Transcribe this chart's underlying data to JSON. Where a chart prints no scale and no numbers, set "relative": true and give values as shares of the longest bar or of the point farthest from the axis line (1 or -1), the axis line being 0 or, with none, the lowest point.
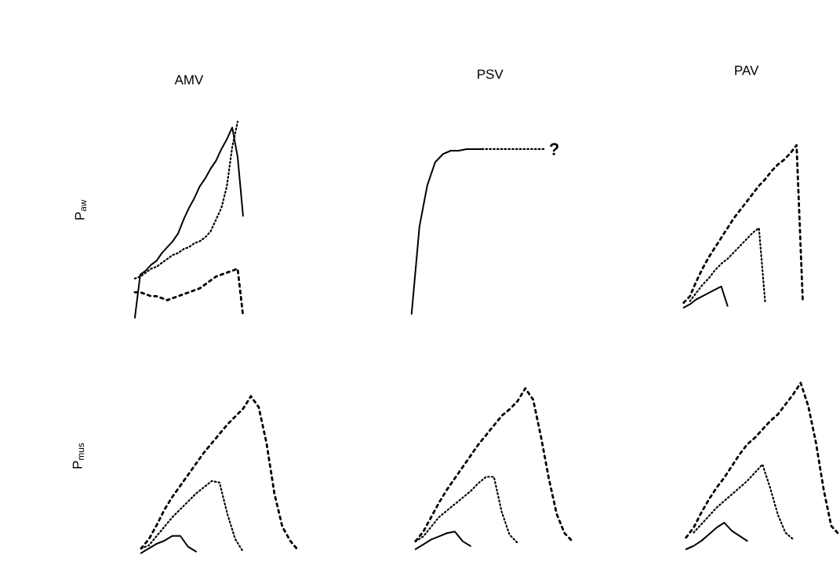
{
  "chart_data": [
    {
      "type": "line",
      "relative": true,
      "title": "AMV",
      "ylabel": "P$_{aw}$",
      "categories": [
        null,
        null,
        null,
        null,
        null,
        null,
        null,
        null,
        null,
        null,
        null,
        null,
        null,
        null,
        null,
        null,
        null,
        null,
        null,
        null,
        null
      ],
      "series": [
        {
          "color": "#000000",
          "line_style": "solid",
          "values": [
            0,
            0.22,
            0.24,
            0.27,
            0.29,
            0.33,
            0.36,
            0.39,
            0.43,
            0.5,
            0.56,
            0.61,
            0.67,
            0.71,
            0.76,
            0.8,
            0.86,
            0.91,
            0.97,
            0.82,
            0.52
          ]
        },
        {
          "color": "#000000",
          "line_style": "dotted",
          "values": [
            0.2,
            0.21,
            0.23,
            0.25,
            0.26,
            0.28,
            0.3,
            0.32,
            0.33,
            0.35,
            0.36,
            0.38,
            0.39,
            0.41,
            0.44,
            0.5,
            0.56,
            0.67,
            0.87,
            1.0,
            null
          ]
        },
        {
          "color": "#000000",
          "line_style": "dashed",
          "values": [
            0.13,
            0.13,
            0.12,
            0.11,
            0.11,
            0.1,
            0.09,
            0.1,
            0.11,
            0.12,
            0.13,
            0.14,
            0.15,
            0.17,
            0.19,
            0.21,
            0.22,
            0.23,
            0.24,
            0.25,
            0.01
          ]
        }
      ]
    },
    {
      "type": "line",
      "relative": true,
      "title": "PSV",
      "annotations": [
        "?"
      ],
      "categories": [
        null,
        null,
        null,
        null,
        null,
        null,
        null,
        null,
        null,
        null,
        null,
        null,
        null,
        null,
        null,
        null,
        null,
        null,
        null,
        null,
        null
      ],
      "series": [
        {
          "color": "#000000",
          "line_style": "solid",
          "values": [
            0,
            0.53,
            0.78,
            0.92,
            0.97,
            0.99,
            0.99,
            1.0,
            1.0,
            1.0,
            null,
            null,
            null,
            null,
            null,
            null,
            null,
            null,
            null,
            null,
            null
          ]
        },
        {
          "color": "#000000",
          "line_style": "dotted",
          "values": [
            null,
            null,
            null,
            null,
            null,
            null,
            null,
            null,
            null,
            1.0,
            1.0,
            1.0,
            1.0,
            1.0,
            1.0,
            1.0,
            1.0,
            1.0,
            null,
            null,
            null
          ]
        }
      ]
    },
    {
      "type": "line",
      "relative": true,
      "title": "PAV",
      "categories": [
        null,
        null,
        null,
        null,
        null,
        null,
        null,
        null,
        null,
        null,
        null,
        null,
        null,
        null,
        null,
        null,
        null,
        null,
        null,
        null,
        null
      ],
      "series": [
        {
          "color": "#000000",
          "line_style": "dashed",
          "values": [
            0.03,
            0.07,
            0.16,
            0.24,
            0.31,
            0.37,
            0.43,
            0.49,
            0.55,
            0.6,
            0.65,
            0.7,
            0.75,
            0.79,
            0.84,
            0.88,
            0.91,
            0.95,
            1.0,
            0.03,
            null
          ]
        },
        {
          "color": "#000000",
          "line_style": "dotted",
          "values": [
            null,
            0.04,
            0.09,
            0.14,
            0.18,
            0.23,
            0.27,
            0.3,
            0.34,
            0.38,
            0.42,
            0.46,
            0.49,
            0.03,
            null,
            null,
            null,
            null,
            null,
            null,
            null
          ]
        },
        {
          "color": "#000000",
          "line_style": "solid",
          "values": [
            0,
            0.02,
            0.05,
            0.07,
            0.09,
            0.11,
            0.13,
            0.01,
            null,
            null,
            null,
            null,
            null,
            null,
            null,
            null,
            null,
            null,
            null,
            null,
            null
          ]
        }
      ]
    },
    {
      "type": "line",
      "relative": true,
      "ylabel": "P$_{mus}$",
      "categories": [
        null,
        null,
        null,
        null,
        null,
        null,
        null,
        null,
        null,
        null,
        null,
        null,
        null,
        null,
        null,
        null,
        null,
        null,
        null,
        null,
        null
      ],
      "series": [
        {
          "color": "#000000",
          "line_style": "dashed",
          "values": [
            0.03,
            0.09,
            0.18,
            0.28,
            0.36,
            0.43,
            0.5,
            0.57,
            0.64,
            0.7,
            0.76,
            0.82,
            0.87,
            0.92,
            1.0,
            0.93,
            0.7,
            0.38,
            0.17,
            0.08,
            0.02
          ]
        },
        {
          "color": "#000000",
          "line_style": "dotted",
          "values": [
            0.03,
            0.05,
            0.11,
            0.17,
            0.23,
            0.28,
            0.33,
            0.38,
            0.42,
            0.46,
            0.45,
            0.25,
            0.09,
            0.01,
            null,
            null,
            null,
            null,
            null,
            null,
            null
          ]
        },
        {
          "color": "#000000",
          "line_style": "solid",
          "values": [
            0,
            0.03,
            0.06,
            0.08,
            0.11,
            0.11,
            0.04,
            0.01,
            null,
            null,
            null,
            null,
            null,
            null,
            null,
            null,
            null,
            null,
            null,
            null,
            null
          ]
        }
      ]
    },
    {
      "type": "line",
      "relative": true,
      "categories": [
        null,
        null,
        null,
        null,
        null,
        null,
        null,
        null,
        null,
        null,
        null,
        null,
        null,
        null,
        null,
        null,
        null,
        null,
        null,
        null,
        null
      ],
      "series": [
        {
          "color": "#000000",
          "line_style": "dashed",
          "values": [
            0.05,
            0.11,
            0.2,
            0.29,
            0.37,
            0.44,
            0.51,
            0.58,
            0.65,
            0.71,
            0.77,
            0.83,
            0.87,
            0.92,
            1.0,
            0.93,
            0.7,
            0.44,
            0.22,
            0.1,
            0.05
          ]
        },
        {
          "color": "#000000",
          "line_style": "dotted",
          "values": [
            0.05,
            0.08,
            0.14,
            0.2,
            0.24,
            0.28,
            0.32,
            0.36,
            0.41,
            0.45,
            0.45,
            0.23,
            0.09,
            0.04,
            null,
            null,
            null,
            null,
            null,
            null,
            null
          ]
        },
        {
          "color": "#000000",
          "line_style": "solid",
          "values": [
            0,
            0.03,
            0.06,
            0.08,
            0.1,
            0.11,
            0.05,
            0.02,
            null,
            null,
            null,
            null,
            null,
            null,
            null,
            null,
            null,
            null,
            null,
            null,
            null
          ]
        }
      ]
    },
    {
      "type": "line",
      "relative": true,
      "categories": [
        null,
        null,
        null,
        null,
        null,
        null,
        null,
        null,
        null,
        null,
        null,
        null,
        null,
        null,
        null,
        null,
        null,
        null,
        null,
        null,
        null
      ],
      "series": [
        {
          "color": "#000000",
          "line_style": "dashed",
          "values": [
            0.07,
            0.13,
            0.22,
            0.3,
            0.37,
            0.43,
            0.5,
            0.57,
            0.63,
            0.67,
            0.72,
            0.77,
            0.81,
            0.87,
            0.93,
            1.0,
            0.86,
            0.64,
            0.36,
            0.14,
            0.09
          ]
        },
        {
          "color": "#000000",
          "line_style": "dotted",
          "values": [
            null,
            0.1,
            0.15,
            0.2,
            0.25,
            0.29,
            0.33,
            0.37,
            0.41,
            0.46,
            0.51,
            0.37,
            0.21,
            0.1,
            0.06,
            null,
            null,
            null,
            null,
            null,
            null
          ]
        },
        {
          "color": "#000000",
          "line_style": "solid",
          "values": [
            0,
            0.02,
            0.05,
            0.09,
            0.13,
            0.16,
            0.11,
            0.08,
            0.05,
            null,
            null,
            null,
            null,
            null,
            null,
            null,
            null,
            null,
            null,
            null,
            null
          ]
        }
      ]
    }
  ]
}
